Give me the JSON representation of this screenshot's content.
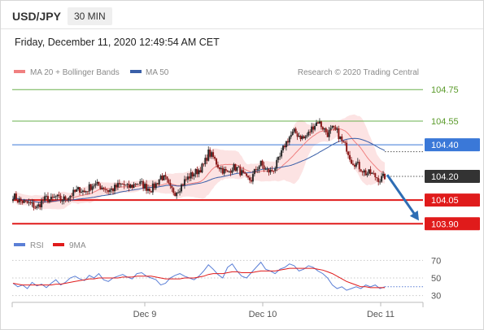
{
  "header": {
    "symbol": "USD/JPY",
    "timeframe": "30 MIN",
    "datetime": "Friday, December 11, 2020 12:49:54 AM CET"
  },
  "legend": {
    "ma20_label": "MA 20 + Bollinger Bands",
    "ma50_label": "MA 50",
    "credit": "Research © 2020 Trading Central",
    "rsi_label": "RSI",
    "ma9_label": "9MA"
  },
  "colors": {
    "ma20": "#f08080",
    "ma50": "#3a5fa8",
    "bollinger_fill": "#fbdada",
    "resistance": "#6ab04c",
    "pivot": "#3a78d8",
    "support": "#e01b1b",
    "current": "#333333",
    "arrow": "#2e6db4",
    "rsi": "#5b7fd6",
    "ma9": "#e01b1b"
  },
  "chart_data": [
    {
      "type": "candlestick",
      "title": "USD/JPY",
      "xlabel": "",
      "ylabel": "",
      "ylim": [
        103.85,
        104.8
      ],
      "x_ticks": [
        "Dec 9",
        "Dec 10",
        "Dec 11"
      ],
      "levels": [
        {
          "name": "resistance-2",
          "value": 104.75,
          "style": "green-line"
        },
        {
          "name": "resistance-1",
          "value": 104.55,
          "style": "green-line"
        },
        {
          "name": "pivot",
          "value": 104.4,
          "style": "blue-line"
        },
        {
          "name": "current",
          "value": 104.2,
          "style": "dotted"
        },
        {
          "name": "support-1",
          "value": 104.05,
          "style": "red-line"
        },
        {
          "name": "support-2",
          "value": 103.9,
          "style": "red-line"
        }
      ],
      "price_path": [
        104.08,
        104.05,
        104.04,
        104.03,
        104.02,
        104.0,
        104.04,
        104.06,
        104.05,
        104.07,
        104.05,
        104.06,
        104.08,
        104.1,
        104.12,
        104.1,
        104.13,
        104.15,
        104.14,
        104.13,
        104.11,
        104.12,
        104.14,
        104.15,
        104.13,
        104.14,
        104.16,
        104.15,
        104.13,
        104.12,
        104.15,
        104.2,
        104.18,
        104.12,
        104.1,
        104.13,
        104.17,
        104.2,
        104.22,
        104.24,
        104.27,
        104.35,
        104.32,
        104.27,
        104.24,
        104.22,
        104.26,
        104.25,
        104.22,
        104.18,
        104.18,
        104.25,
        104.28,
        104.24,
        104.23,
        104.26,
        104.32,
        104.4,
        104.45,
        104.48,
        104.46,
        104.44,
        104.47,
        104.52,
        104.55,
        104.51,
        104.47,
        104.5,
        104.48,
        104.42,
        104.38,
        104.3,
        104.28,
        104.25,
        104.22,
        104.22,
        104.2,
        104.18,
        104.2
      ],
      "series": [
        {
          "name": "MA 20 + Bollinger Bands"
        },
        {
          "name": "MA 50"
        }
      ]
    },
    {
      "type": "line",
      "title": "RSI",
      "ylim": [
        25,
        75
      ],
      "y_ticks": [
        70,
        50,
        30
      ],
      "series": [
        {
          "name": "RSI",
          "values": [
            44,
            40,
            42,
            38,
            45,
            41,
            43,
            39,
            44,
            48,
            42,
            45,
            50,
            52,
            49,
            47,
            53,
            50,
            55,
            48,
            46,
            50,
            52,
            54,
            51,
            49,
            55,
            56,
            52,
            50,
            48,
            42,
            44,
            50,
            53,
            55,
            52,
            50,
            48,
            52,
            58,
            65,
            60,
            54,
            50,
            62,
            66,
            58,
            52,
            50,
            56,
            62,
            68,
            60,
            58,
            55,
            60,
            62,
            66,
            64,
            58,
            60,
            64,
            62,
            58,
            55,
            50,
            42,
            38,
            40,
            36,
            38,
            40,
            38,
            42,
            40,
            42,
            38,
            40
          ]
        },
        {
          "name": "9MA",
          "values": [
            44,
            43,
            42,
            42,
            42,
            42,
            42,
            42,
            42,
            43,
            43,
            44,
            45,
            46,
            47,
            48,
            49,
            49,
            50,
            50,
            50,
            50,
            50,
            51,
            51,
            51,
            52,
            52,
            52,
            52,
            51,
            50,
            49,
            49,
            49,
            49,
            50,
            50,
            50,
            51,
            52,
            54,
            55,
            55,
            55,
            56,
            57,
            57,
            56,
            56,
            56,
            57,
            58,
            58,
            58,
            58,
            59,
            60,
            61,
            61,
            61,
            61,
            61,
            61,
            60,
            59,
            57,
            55,
            52,
            49,
            46,
            44,
            42,
            40,
            40,
            39,
            39,
            39,
            39
          ]
        }
      ]
    }
  ]
}
